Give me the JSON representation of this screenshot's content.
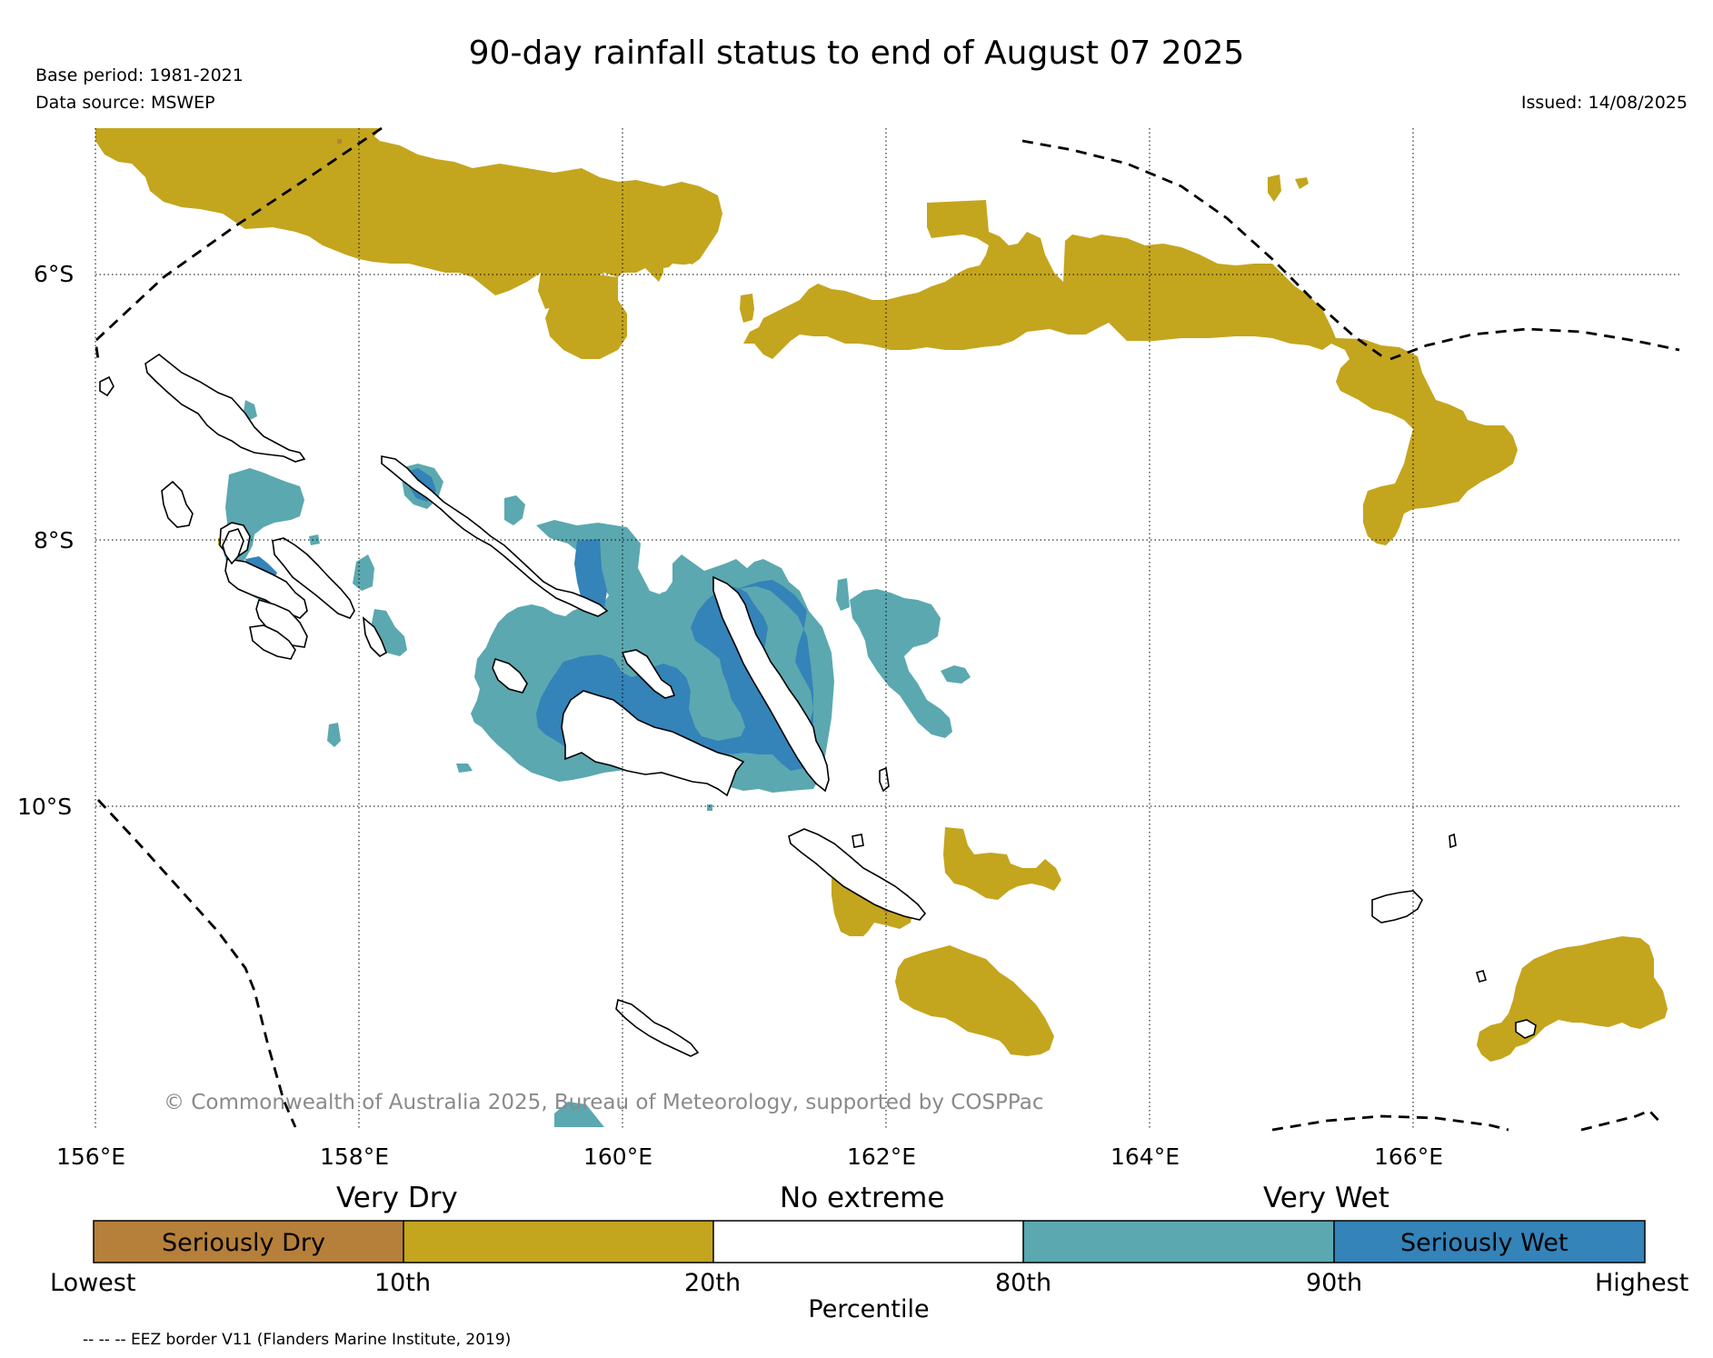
{
  "header": {
    "title": "90-day rainfall status to end of August 07 2025",
    "base_period": "Base period: 1981-2021",
    "data_source": "Data source: MSWEP",
    "issued": "Issued: 14/08/2025"
  },
  "map": {
    "lat_labels": [
      "6°S",
      "8°S",
      "10°S"
    ],
    "lon_labels": [
      "156°E",
      "158°E",
      "160°E",
      "162°E",
      "164°E",
      "166°E"
    ],
    "copyright": "© Commonwealth of Australia 2025, Bureau of Meteorology, supported by COSPPac",
    "colors": {
      "very_dry": "#c4a51e",
      "seriously_dry": "#b6803a",
      "no_extreme": "#ffffff",
      "very_wet": "#5ba8b0",
      "seriously_wet": "#3483b9",
      "coastline": "#000000",
      "eez": "#000000"
    }
  },
  "legend": {
    "categories": [
      "Very Dry",
      "No extreme",
      "Very Wet"
    ],
    "segments": [
      {
        "label": "Seriously Dry",
        "color": "#b6803a"
      },
      {
        "label": "",
        "color": "#c4a51e"
      },
      {
        "label": "",
        "color": "#ffffff"
      },
      {
        "label": "",
        "color": "#5ba8b0"
      },
      {
        "label": "Seriously Wet",
        "color": "#3483b9"
      }
    ],
    "ticks": [
      "Lowest",
      "10th",
      "20th",
      "80th",
      "90th",
      "Highest"
    ],
    "axis_label": "Percentile",
    "eez_note": "-- -- -- EEZ border V11 (Flanders Marine Institute, 2019)"
  }
}
